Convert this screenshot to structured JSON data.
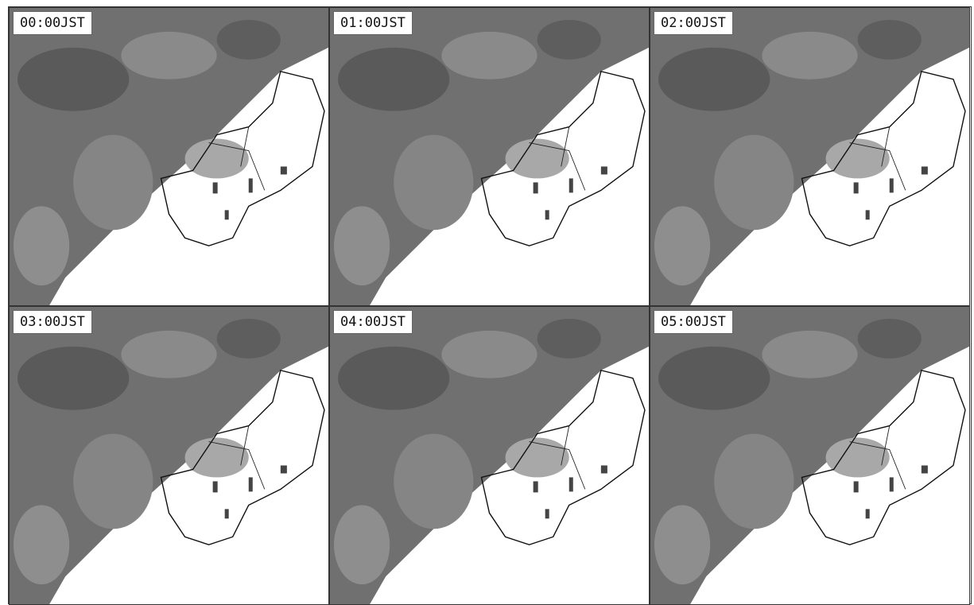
{
  "panels": [
    {
      "label": "00:00JST"
    },
    {
      "label": "01:00JST"
    },
    {
      "label": "02:00JST"
    },
    {
      "label": "03:00JST"
    },
    {
      "label": "04:00JST"
    },
    {
      "label": "05:00JST"
    }
  ]
}
